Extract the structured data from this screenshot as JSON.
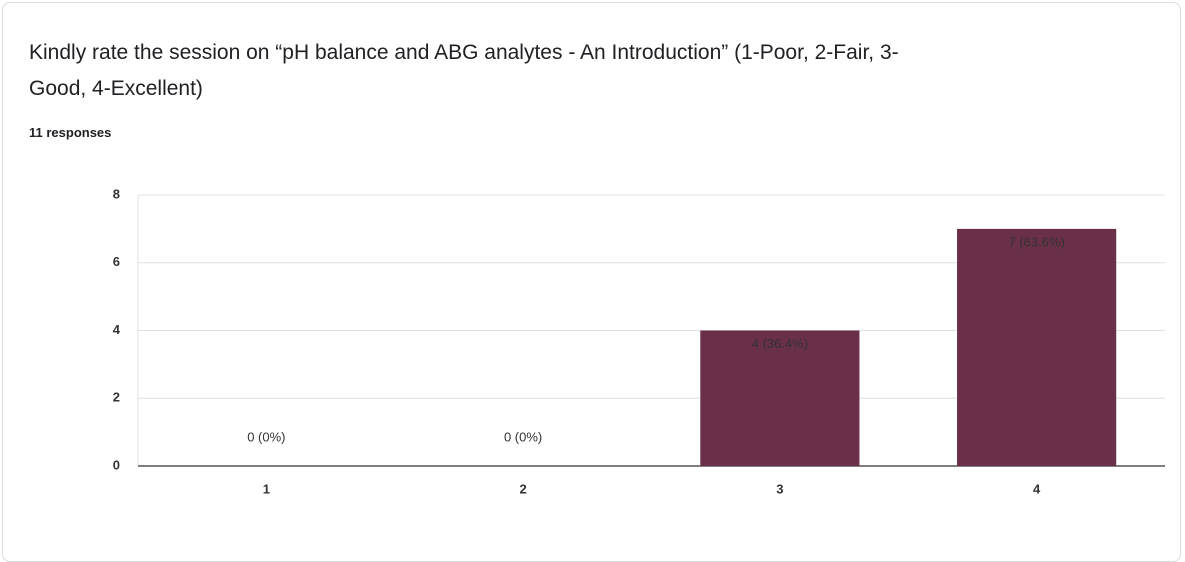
{
  "chart_data": {
    "type": "bar",
    "title": "Kindly rate the session on “pH balance and ABG analytes - An Introduction” (1-Poor, 2-Fair, 3-Good, 4-Excellent)",
    "subtitle": "11 responses",
    "categories": [
      "1",
      "2",
      "3",
      "4"
    ],
    "values": [
      0,
      0,
      4,
      7
    ],
    "value_labels": [
      "0 (0%)",
      "0 (0%)",
      "4 (36.4%)",
      "7 (63.6%)"
    ],
    "color": "#6b3049",
    "ylim": [
      0,
      8
    ],
    "yticks": [
      0,
      2,
      4,
      6,
      8
    ],
    "grid": true
  }
}
